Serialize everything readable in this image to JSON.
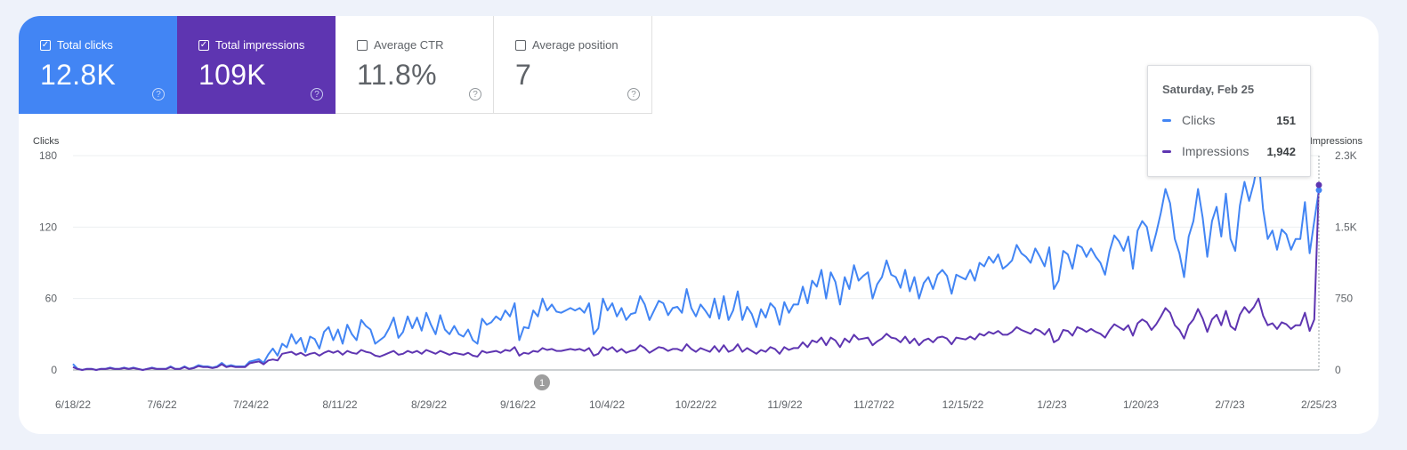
{
  "metrics": [
    {
      "label": "Total clicks",
      "value": "12.8K",
      "checked": true,
      "color": "#4285f4"
    },
    {
      "label": "Total impressions",
      "value": "109K",
      "checked": true,
      "color": "#5e35b1"
    },
    {
      "label": "Average CTR",
      "value": "11.8%",
      "checked": false,
      "color": "#ffffff"
    },
    {
      "label": "Average position",
      "value": "7",
      "checked": false,
      "color": "#ffffff"
    }
  ],
  "help_glyph": "?",
  "annotation_label": "1",
  "tooltip": {
    "date": "Saturday, Feb 25",
    "rows": [
      {
        "name": "Clicks",
        "value": "151",
        "color": "#4285f4"
      },
      {
        "name": "Impressions",
        "value": "1,942",
        "color": "#5e35b1"
      }
    ]
  },
  "chart_data": {
    "type": "line",
    "x_range": [
      "6/18/22",
      "2/25/23"
    ],
    "x_ticks": [
      "6/18/22",
      "7/6/22",
      "7/24/22",
      "8/11/22",
      "8/29/22",
      "9/16/22",
      "10/4/22",
      "10/22/22",
      "11/9/22",
      "11/27/22",
      "12/15/22",
      "1/2/23",
      "1/20/23",
      "2/7/23",
      "2/25/23"
    ],
    "yleft": {
      "label": "Clicks",
      "ticks": [
        "0",
        "60",
        "120",
        "180"
      ],
      "ylim": [
        0,
        180
      ]
    },
    "yright": {
      "label": "Impressions",
      "ticks": [
        "0",
        "750",
        "1.5K",
        "2.3K"
      ],
      "ylim": [
        0,
        2250
      ]
    },
    "grid": true,
    "series": [
      {
        "name": "Clicks",
        "axis": "left",
        "color": "#4285f4",
        "values": [
          5,
          1,
          0,
          1,
          1,
          0,
          1,
          1,
          2,
          1,
          1,
          2,
          1,
          2,
          1,
          0,
          1,
          2,
          1,
          1,
          1,
          3,
          1,
          1,
          3,
          1,
          2,
          4,
          3,
          3,
          2,
          3,
          6,
          3,
          4,
          3,
          3,
          3,
          7,
          8,
          9,
          6,
          13,
          18,
          12,
          22,
          19,
          30,
          22,
          27,
          15,
          28,
          26,
          18,
          32,
          36,
          25,
          34,
          22,
          38,
          30,
          25,
          42,
          37,
          34,
          22,
          25,
          28,
          35,
          44,
          27,
          32,
          45,
          35,
          44,
          33,
          48,
          38,
          30,
          46,
          34,
          30,
          37,
          30,
          28,
          34,
          25,
          22,
          43,
          38,
          40,
          45,
          42,
          50,
          45,
          56,
          25,
          36,
          35,
          50,
          45,
          60,
          50,
          55,
          49,
          48,
          50,
          52,
          50,
          52,
          48,
          56,
          30,
          35,
          60,
          50,
          56,
          45,
          52,
          42,
          47,
          48,
          62,
          55,
          42,
          50,
          58,
          56,
          46,
          52,
          53,
          48,
          68,
          52,
          45,
          55,
          50,
          44,
          60,
          43,
          62,
          42,
          50,
          66,
          42,
          53,
          47,
          36,
          51,
          44,
          56,
          52,
          38,
          57,
          48,
          55,
          55,
          70,
          56,
          75,
          70,
          84,
          60,
          82,
          74,
          55,
          78,
          68,
          88,
          75,
          79,
          82,
          60,
          72,
          78,
          92,
          80,
          78,
          69,
          84,
          66,
          78,
          60,
          73,
          78,
          68,
          80,
          84,
          79,
          64,
          80,
          78,
          76,
          84,
          75,
          90,
          87,
          95,
          90,
          97,
          85,
          88,
          92,
          105,
          98,
          95,
          90,
          102,
          95,
          87,
          103,
          68,
          75,
          100,
          97,
          85,
          105,
          103,
          95,
          102,
          95,
          90,
          80,
          100,
          113,
          108,
          100,
          112,
          85,
          117,
          125,
          120,
          100,
          115,
          132,
          152,
          140,
          110,
          98,
          78,
          112,
          125,
          152,
          128,
          95,
          125,
          137,
          112,
          148,
          110,
          100,
          138,
          158,
          142,
          157,
          178,
          135,
          110,
          117,
          101,
          118,
          114,
          101,
          110,
          110,
          141,
          98,
          125,
          151
        ]
      },
      {
        "name": "Impressions",
        "axis": "right",
        "color": "#5e35b1",
        "values": [
          30,
          10,
          0,
          10,
          10,
          0,
          10,
          10,
          20,
          10,
          10,
          20,
          10,
          20,
          10,
          0,
          10,
          20,
          10,
          10,
          10,
          30,
          10,
          10,
          30,
          10,
          20,
          40,
          30,
          30,
          20,
          30,
          60,
          30,
          40,
          30,
          30,
          30,
          70,
          80,
          90,
          60,
          100,
          110,
          100,
          170,
          180,
          190,
          160,
          180,
          150,
          170,
          180,
          150,
          180,
          200,
          180,
          200,
          160,
          200,
          180,
          170,
          210,
          190,
          180,
          150,
          140,
          160,
          180,
          200,
          160,
          170,
          200,
          180,
          200,
          170,
          210,
          190,
          170,
          200,
          180,
          160,
          180,
          170,
          160,
          180,
          150,
          140,
          200,
          180,
          190,
          200,
          180,
          210,
          200,
          240,
          150,
          180,
          170,
          200,
          190,
          230,
          210,
          220,
          200,
          200,
          210,
          220,
          210,
          220,
          200,
          230,
          150,
          170,
          240,
          210,
          240,
          190,
          220,
          180,
          200,
          210,
          260,
          230,
          180,
          210,
          240,
          230,
          200,
          220,
          220,
          200,
          270,
          220,
          190,
          230,
          210,
          190,
          250,
          190,
          260,
          190,
          210,
          270,
          190,
          230,
          200,
          170,
          210,
          190,
          240,
          220,
          170,
          240,
          210,
          230,
          230,
          290,
          240,
          310,
          290,
          340,
          260,
          340,
          310,
          240,
          330,
          290,
          370,
          320,
          330,
          340,
          260,
          300,
          330,
          380,
          340,
          330,
          290,
          350,
          280,
          330,
          260,
          310,
          330,
          290,
          340,
          350,
          330,
          270,
          340,
          330,
          320,
          350,
          320,
          380,
          360,
          400,
          380,
          410,
          370,
          370,
          400,
          450,
          420,
          400,
          380,
          430,
          410,
          370,
          430,
          290,
          320,
          420,
          410,
          360,
          450,
          430,
          400,
          430,
          400,
          380,
          340,
          420,
          480,
          450,
          420,
          470,
          360,
          490,
          530,
          500,
          420,
          480,
          560,
          650,
          600,
          470,
          420,
          330,
          470,
          530,
          640,
          540,
          400,
          530,
          580,
          470,
          620,
          460,
          420,
          580,
          660,
          600,
          660,
          750,
          570,
          470,
          490,
          430,
          500,
          480,
          430,
          470,
          470,
          600,
          410,
          530,
          1942
        ]
      }
    ]
  }
}
